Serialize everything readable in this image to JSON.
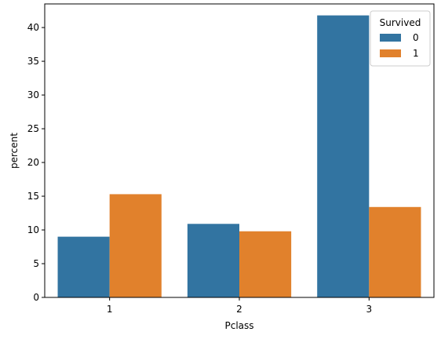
{
  "chart_data": {
    "type": "bar",
    "title": "",
    "xlabel": "Pclass",
    "ylabel": "percent",
    "categories": [
      "1",
      "2",
      "3"
    ],
    "ylim": [
      0,
      43.5
    ],
    "yticks": [
      0,
      5,
      10,
      15,
      20,
      25,
      30,
      35,
      40
    ],
    "grid": false,
    "legend": {
      "title": "Survived",
      "placement": "top-right"
    },
    "series": [
      {
        "name": "0",
        "color": "#3274a1",
        "values": [
          9.0,
          10.9,
          41.8
        ]
      },
      {
        "name": "1",
        "color": "#e1812c",
        "values": [
          15.3,
          9.8,
          13.4
        ]
      }
    ]
  }
}
